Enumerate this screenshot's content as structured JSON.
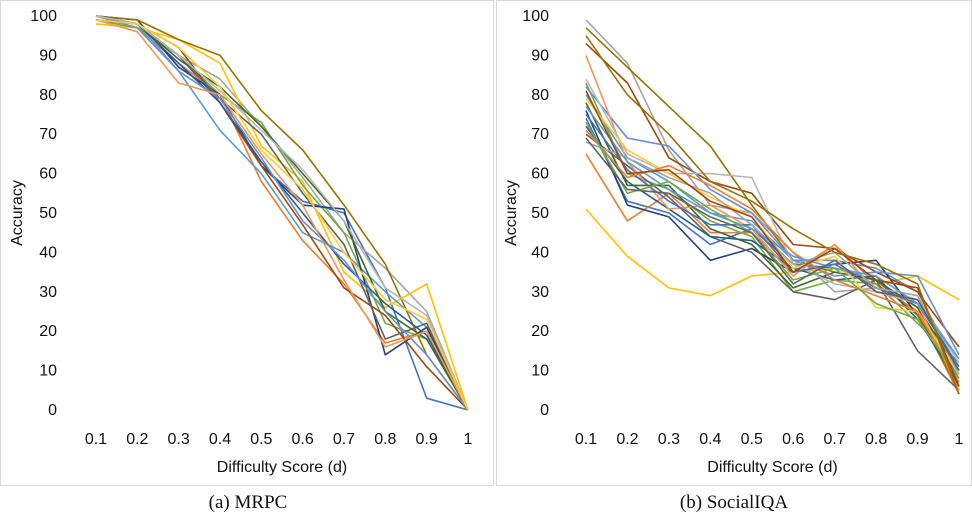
{
  "chart_data": [
    {
      "type": "line",
      "title": "",
      "xlabel": "Difficulty Score (d)",
      "ylabel": "Accuracy",
      "x": [
        0.1,
        0.2,
        0.3,
        0.4,
        0.5,
        0.6,
        0.7,
        0.8,
        0.9,
        1
      ],
      "x_tick_labels": [
        "0.1",
        "0.2",
        "0.3",
        "0.4",
        "0.5",
        "0.6",
        "0.7",
        "0.8",
        "0.9",
        "1"
      ],
      "ylim": [
        0,
        100
      ],
      "y_ticks": [
        0,
        10,
        20,
        30,
        40,
        50,
        60,
        70,
        80,
        90,
        100
      ],
      "grid": false,
      "legend": "none",
      "colors": [
        "#4472C4",
        "#ED7D31",
        "#A5A5A5",
        "#FFC000",
        "#5B9BD5",
        "#70AD47",
        "#264478",
        "#9E480E",
        "#636363",
        "#997300",
        "#255E91",
        "#43682B",
        "#698ED0",
        "#F1975A",
        "#B7B7B7",
        "#FFCD33"
      ],
      "series": [
        {
          "values": [
            100,
            98,
            90,
            78,
            62,
            53,
            50,
            31,
            3,
            0
          ]
        },
        {
          "values": [
            99,
            97,
            88,
            80,
            58,
            43,
            32,
            17,
            20,
            0
          ]
        },
        {
          "values": [
            100,
            98,
            90,
            84,
            72,
            59,
            45,
            36,
            25,
            0
          ]
        },
        {
          "values": [
            98,
            97,
            94,
            88,
            67,
            58,
            35,
            26,
            32,
            0
          ]
        },
        {
          "values": [
            99,
            98,
            86,
            71,
            60,
            45,
            40,
            30,
            21,
            0
          ]
        },
        {
          "values": [
            99,
            97,
            90,
            80,
            73,
            57,
            45,
            22,
            18,
            0
          ]
        },
        {
          "values": [
            100,
            99,
            87,
            80,
            62,
            52,
            51,
            14,
            21,
            0
          ]
        },
        {
          "values": [
            100,
            98,
            92,
            78,
            62,
            47,
            31,
            24,
            11,
            0
          ]
        },
        {
          "values": [
            99,
            98,
            90,
            79,
            70,
            55,
            42,
            18,
            22,
            0
          ]
        },
        {
          "values": [
            100,
            99,
            94,
            90,
            76,
            66,
            52,
            37,
            14,
            0
          ]
        },
        {
          "values": [
            100,
            98,
            88,
            78,
            63,
            50,
            37,
            27,
            19,
            0
          ]
        },
        {
          "values": [
            99,
            98,
            89,
            82,
            72,
            60,
            48,
            25,
            18,
            0
          ]
        },
        {
          "values": [
            100,
            97,
            86,
            79,
            64,
            48,
            38,
            25,
            14,
            0
          ]
        },
        {
          "values": [
            99,
            96,
            83,
            80,
            65,
            52,
            33,
            16,
            20,
            0
          ]
        },
        {
          "values": [
            100,
            98,
            90,
            81,
            71,
            61,
            48,
            31,
            24,
            0
          ]
        },
        {
          "values": [
            99,
            98,
            92,
            82,
            66,
            56,
            40,
            28,
            23,
            0
          ]
        }
      ]
    },
    {
      "type": "line",
      "title": "",
      "xlabel": "Difficulty Score (d)",
      "ylabel": "Accuracy",
      "x": [
        0.1,
        0.2,
        0.3,
        0.4,
        0.5,
        0.6,
        0.7,
        0.8,
        0.9,
        1
      ],
      "x_tick_labels": [
        "0.1",
        "0.2",
        "0.3",
        "0.4",
        "0.5",
        "0.6",
        "0.7",
        "0.8",
        "0.9",
        "1"
      ],
      "ylim": [
        0,
        100
      ],
      "y_ticks": [
        0,
        10,
        20,
        30,
        40,
        50,
        60,
        70,
        80,
        90,
        100
      ],
      "grid": false,
      "legend": "none",
      "colors": [
        "#4472C4",
        "#ED7D31",
        "#A5A5A5",
        "#FFC000",
        "#5B9BD5",
        "#70AD47",
        "#264478",
        "#9E480E",
        "#636363",
        "#997300",
        "#255E91",
        "#43682B",
        "#698ED0",
        "#F1975A",
        "#B7B7B7",
        "#FFCD33",
        "#4472C4",
        "#ED7D31",
        "#A5A5A5",
        "#5B9BD5",
        "#70AD47",
        "#9E480E",
        "#636363",
        "#997300"
      ],
      "series": [
        {
          "values": [
            74,
            53,
            50,
            42,
            46,
            37,
            36,
            33,
            26,
            8
          ]
        },
        {
          "values": [
            65,
            48,
            55,
            45,
            45,
            35,
            42,
            32,
            25,
            4
          ]
        },
        {
          "values": [
            99,
            88,
            66,
            52,
            50,
            40,
            30,
            31,
            28,
            13
          ]
        },
        {
          "values": [
            51,
            39,
            31,
            29,
            34,
            35,
            36,
            32,
            34,
            28
          ]
        },
        {
          "values": [
            80,
            64,
            58,
            50,
            48,
            38,
            38,
            36,
            30,
            10
          ]
        },
        {
          "values": [
            83,
            60,
            56,
            48,
            44,
            30,
            33,
            32,
            22,
            12
          ]
        },
        {
          "values": [
            76,
            52,
            49,
            38,
            41,
            35,
            37,
            38,
            24,
            6
          ]
        },
        {
          "values": [
            93,
            83,
            64,
            58,
            55,
            42,
            41,
            35,
            30,
            16
          ]
        },
        {
          "values": [
            70,
            62,
            54,
            44,
            40,
            30,
            28,
            33,
            15,
            5
          ]
        },
        {
          "values": [
            97,
            87,
            77,
            67,
            52,
            38,
            35,
            33,
            24,
            5
          ]
        },
        {
          "values": [
            72,
            58,
            51,
            44,
            43,
            36,
            33,
            34,
            23,
            7
          ]
        },
        {
          "values": [
            78,
            57,
            57,
            46,
            42,
            31,
            35,
            33,
            26,
            10
          ]
        },
        {
          "values": [
            82,
            69,
            67,
            56,
            50,
            38,
            34,
            35,
            34,
            14
          ]
        },
        {
          "values": [
            90,
            63,
            51,
            52,
            46,
            34,
            42,
            30,
            27,
            5
          ]
        },
        {
          "values": [
            84,
            65,
            60,
            60,
            59,
            37,
            32,
            30,
            28,
            12
          ]
        },
        {
          "values": [
            79,
            66,
            60,
            54,
            49,
            36,
            39,
            26,
            25,
            9
          ]
        },
        {
          "values": [
            75,
            61,
            53,
            47,
            47,
            35,
            37,
            31,
            27,
            11
          ]
        },
        {
          "values": [
            71,
            59,
            62,
            57,
            51,
            40,
            33,
            29,
            25,
            7
          ]
        },
        {
          "values": [
            68,
            64,
            59,
            55,
            47,
            37,
            40,
            31,
            29,
            9
          ]
        },
        {
          "values": [
            77,
            63,
            56,
            50,
            46,
            39,
            36,
            34,
            27,
            13
          ]
        },
        {
          "values": [
            73,
            55,
            58,
            51,
            45,
            33,
            36,
            27,
            23,
            8
          ]
        },
        {
          "values": [
            81,
            60,
            61,
            53,
            49,
            35,
            41,
            33,
            31,
            6
          ]
        },
        {
          "values": [
            69,
            56,
            55,
            49,
            45,
            32,
            38,
            30,
            28,
            10
          ]
        },
        {
          "values": [
            95,
            80,
            70,
            58,
            53,
            46,
            40,
            37,
            32,
            4
          ]
        }
      ]
    }
  ],
  "captions": {
    "a": "(a) MRPC",
    "b": "(b) SocialIQA"
  }
}
